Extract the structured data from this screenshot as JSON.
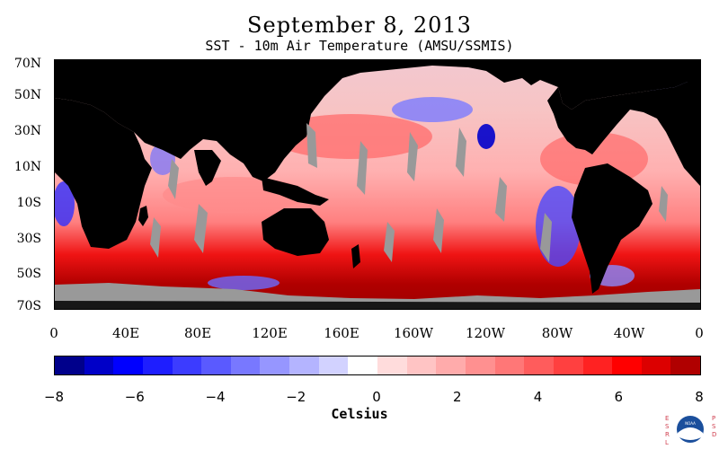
{
  "title": "September 8, 2013",
  "subtitle": "SST - 10m Air Temperature (AMSU/SSMIS)",
  "lat_labels": [
    "70N",
    "50N",
    "30N",
    "10N",
    "10S",
    "30S",
    "50S",
    "70S"
  ],
  "lon_labels": [
    "0",
    "40E",
    "80E",
    "120E",
    "160E",
    "160W",
    "120W",
    "80W",
    "40W",
    "0"
  ],
  "colorbar": {
    "label": "Celsius",
    "tick_labels": [
      "−8",
      "−6",
      "−4",
      "−2",
      "0",
      "2",
      "4",
      "6",
      "8"
    ],
    "range": [
      -8,
      8
    ],
    "colors": [
      "#00008b",
      "#0000c8",
      "#0000ff",
      "#1e1eff",
      "#3c3cff",
      "#5a5aff",
      "#7878ff",
      "#9696ff",
      "#b4b4ff",
      "#d2d2ff",
      "#ffffff",
      "#ffdcdc",
      "#ffc4c4",
      "#ffabab",
      "#ff9090",
      "#ff7777",
      "#ff5c5c",
      "#ff4040",
      "#ff2222",
      "#ff0000",
      "#dc0000",
      "#b00000"
    ]
  },
  "colors": {
    "land": "#000000",
    "ice": "#999999",
    "no_data": "#999999"
  },
  "logo": {
    "left_text": "ESRL",
    "right_text": "PSD",
    "center_text": "NOAA"
  }
}
